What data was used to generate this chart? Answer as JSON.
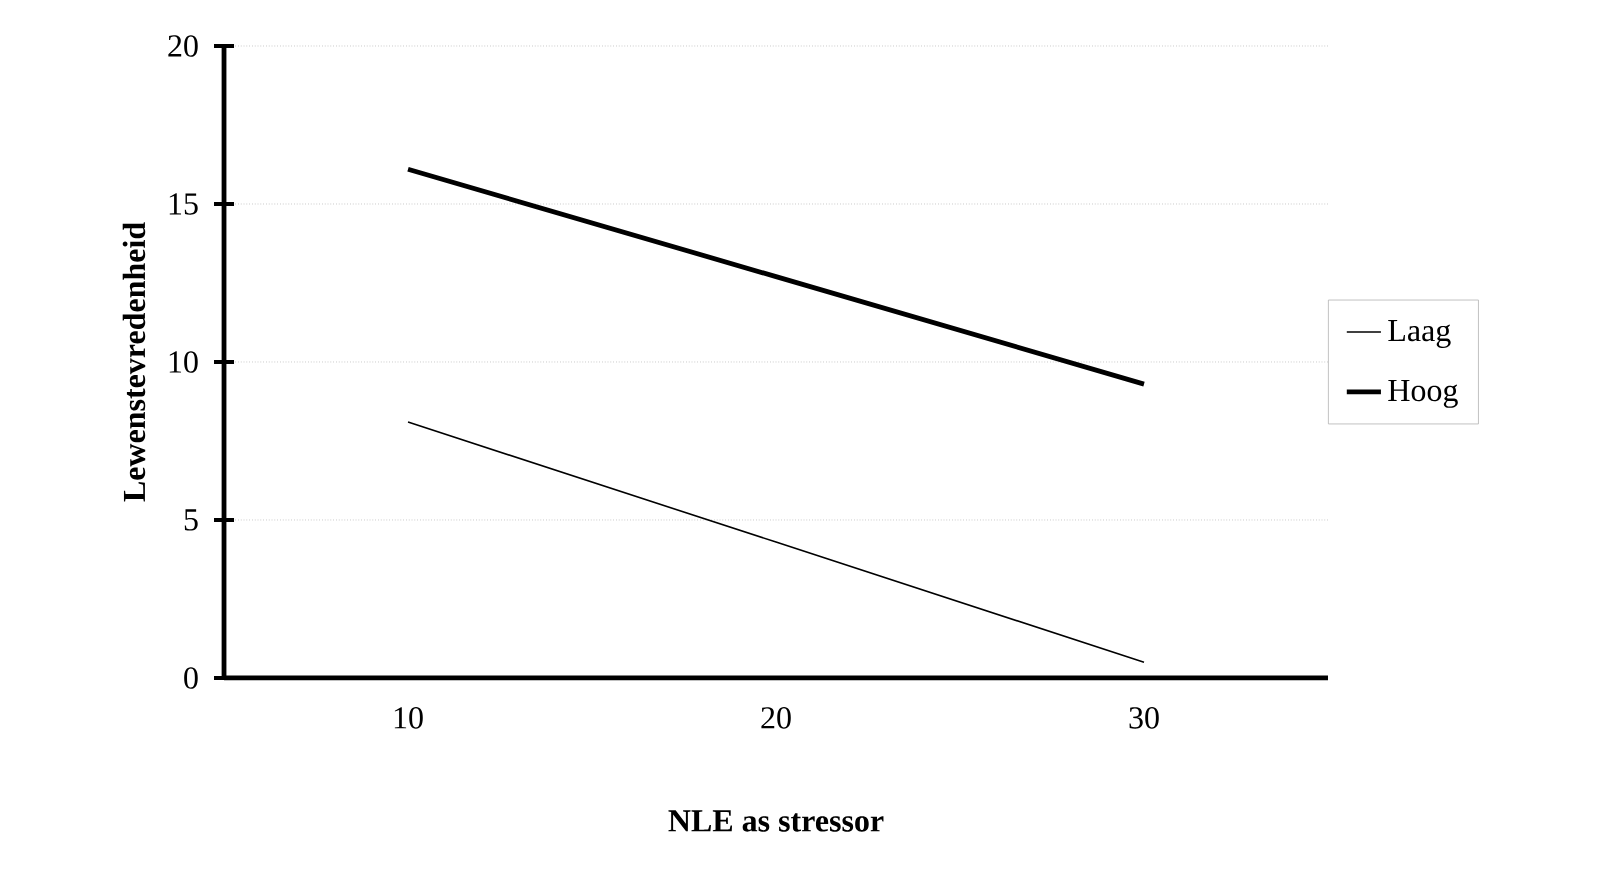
{
  "chart_data": {
    "type": "line",
    "xlabel": "NLE as stressor",
    "ylabel": "Lewenstevredenheid",
    "categories": [
      "10",
      "20",
      "30"
    ],
    "series": [
      {
        "name": "Laag",
        "color": "#000000",
        "values": [
          8.1,
          4.3,
          0.5
        ]
      },
      {
        "name": "Hoog",
        "color": "#000000",
        "values": [
          16.1,
          12.7,
          9.3
        ]
      }
    ],
    "ylim": [
      0,
      20
    ],
    "yticks": [
      0,
      5,
      10,
      15,
      20
    ],
    "grid": "y",
    "legend": "right",
    "marker": "none",
    "line_style": "solid"
  }
}
